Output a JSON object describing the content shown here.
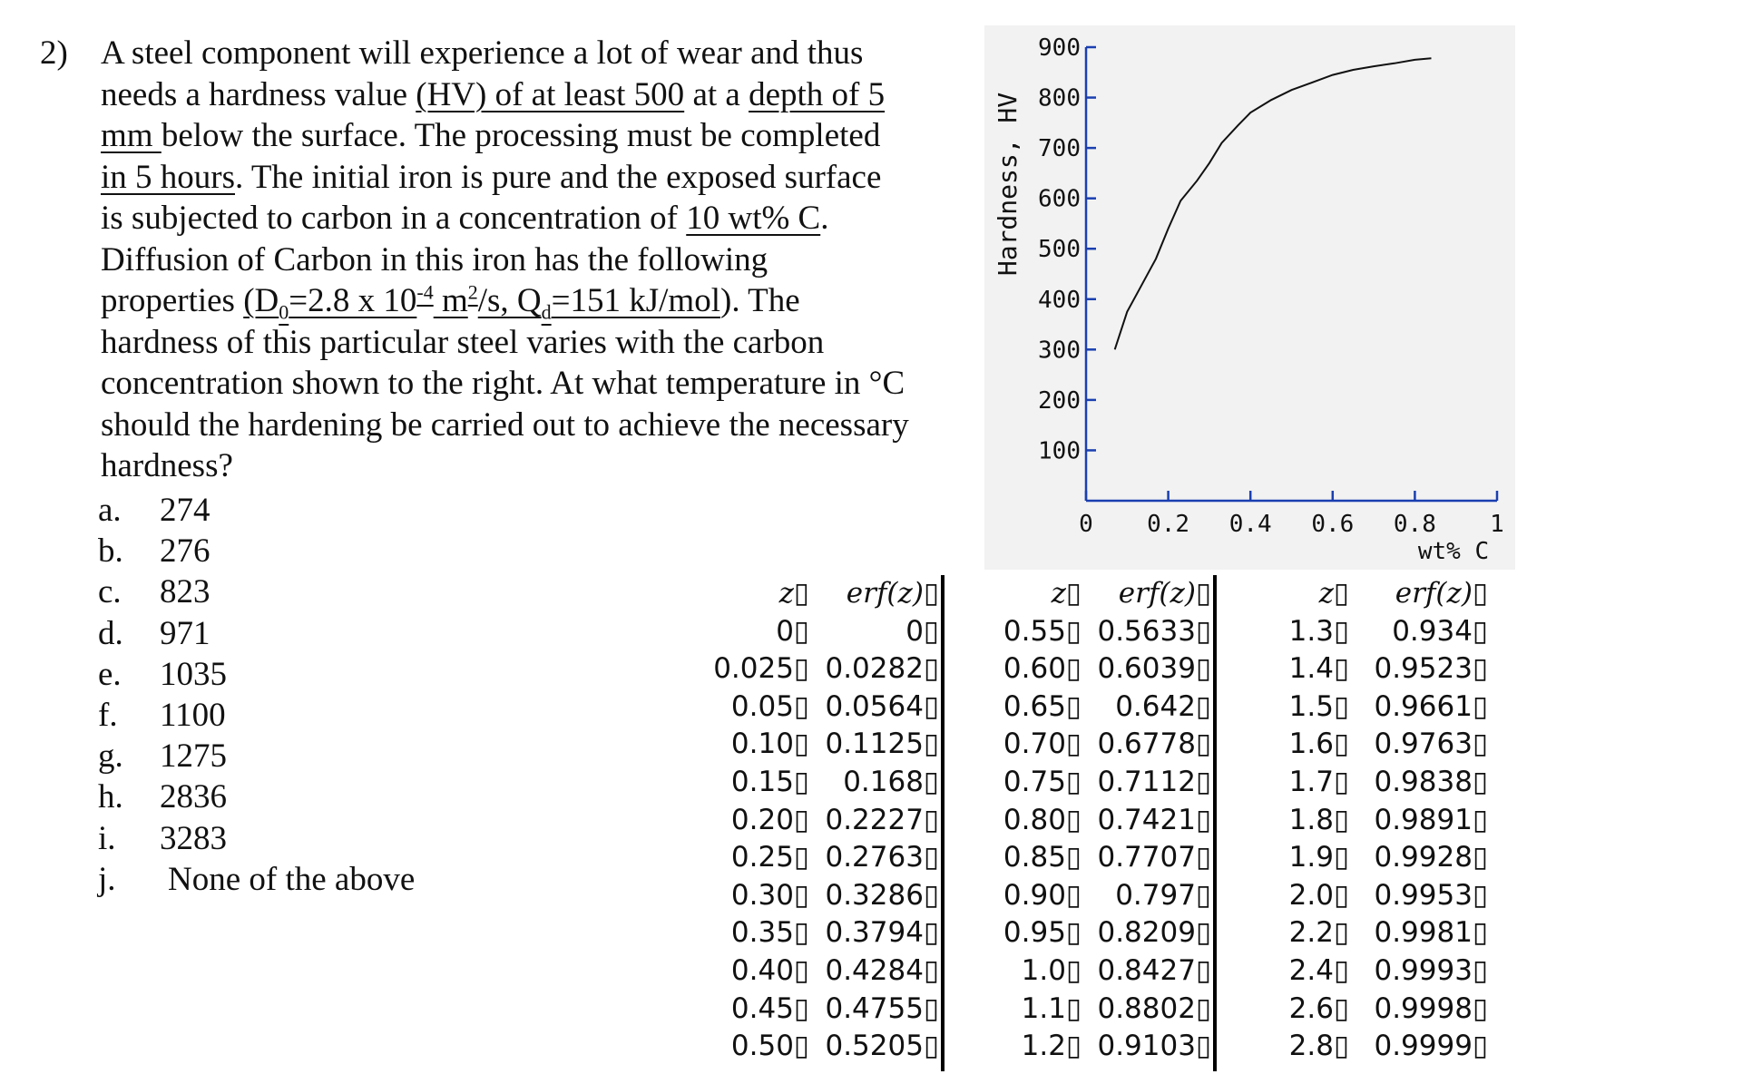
{
  "question": {
    "number": "2)",
    "lines": [
      [
        {
          "t": "A steel component will experience a lot of wear and thus"
        }
      ],
      [
        {
          "t": "needs a hardness value "
        },
        {
          "t": "(HV) of at least 500",
          "u": true
        },
        {
          "t": " at a "
        },
        {
          "t": "depth of 5",
          "u": true
        }
      ],
      [
        {
          "t": "mm ",
          "u": true
        },
        {
          "t": "below the surface. The processing must be completed"
        }
      ],
      [
        {
          "t": "in 5 hours",
          "u": true
        },
        {
          "t": ". The initial iron is pure and the exposed surface"
        }
      ],
      [
        {
          "t": "is subjected to carbon in a concentration of "
        },
        {
          "t": "10 wt% C",
          "u": true
        },
        {
          "t": "."
        }
      ],
      [
        {
          "t": "Diffusion of Carbon in this iron has the following"
        }
      ],
      [
        {
          "t": "properties "
        },
        {
          "t": "(D",
          "u": true
        },
        {
          "t": "0",
          "u": true,
          "sub": true
        },
        {
          "t": "=2.8 x 10",
          "u": true
        },
        {
          "t": "-4",
          "u": true,
          "sup": true
        },
        {
          "t": " m",
          "u": true
        },
        {
          "t": "2",
          "u": true,
          "sup": true
        },
        {
          "t": "/s, Q",
          "u": true
        },
        {
          "t": "d",
          "u": true,
          "sub": true
        },
        {
          "t": "=151 kJ/mol",
          "u": true
        },
        {
          "t": "). The"
        }
      ],
      [
        {
          "t": "hardness of this particular steel varies with the carbon"
        }
      ],
      [
        {
          "t": "concentration shown to the right. At what temperature in °C"
        }
      ],
      [
        {
          "t": "should the hardening be carried out to achieve the necessary"
        }
      ],
      [
        {
          "t": "hardness?"
        }
      ]
    ]
  },
  "options": [
    {
      "letter": "a.",
      "value": "274"
    },
    {
      "letter": "b.",
      "value": "276"
    },
    {
      "letter": "c.",
      "value": "823"
    },
    {
      "letter": "d.",
      "value": "971"
    },
    {
      "letter": "e.",
      "value": "1035"
    },
    {
      "letter": "f.",
      "value": "1100"
    },
    {
      "letter": "g.",
      "value": "1275"
    },
    {
      "letter": "h.",
      "value": "2836"
    },
    {
      "letter": "i.",
      "value": "3283"
    },
    {
      "letter": "j.",
      "value": "None of the above"
    }
  ],
  "chart_data": {
    "type": "line",
    "title": "",
    "xlabel": "wt% C",
    "ylabel": "Hardness, HV",
    "xlim": [
      0,
      1
    ],
    "ylim": [
      0,
      900
    ],
    "xticks": [
      "0",
      "0.2",
      "0.4",
      "0.6",
      "0.8",
      "1"
    ],
    "xtick_values": [
      0,
      0.2,
      0.4,
      0.6,
      0.8,
      1.0
    ],
    "yticks": [
      "100",
      "200",
      "300",
      "400",
      "500",
      "600",
      "700",
      "800",
      "900"
    ],
    "ytick_values": [
      100,
      200,
      300,
      400,
      500,
      600,
      700,
      800,
      900
    ],
    "grid": false,
    "series": [
      {
        "x": [
          0.07,
          0.1,
          0.13,
          0.17,
          0.2,
          0.23,
          0.27,
          0.3,
          0.33,
          0.37,
          0.4,
          0.45,
          0.5,
          0.55,
          0.6,
          0.65,
          0.7,
          0.75,
          0.8,
          0.84
        ],
        "y": [
          300,
          375,
          420,
          480,
          540,
          595,
          635,
          670,
          710,
          745,
          770,
          795,
          815,
          830,
          845,
          855,
          862,
          868,
          875,
          878
        ]
      }
    ],
    "colors": {
      "axis": "#1a3fb0",
      "curve": "#111111",
      "background": "#f2f2f2"
    }
  },
  "erf_table": {
    "header": {
      "z": "z",
      "erf": "erf(z)",
      "glyph": "▯"
    },
    "glyph": "▯",
    "columns": [
      [
        [
          "0",
          "0"
        ],
        [
          "0.025",
          "0.0282"
        ],
        [
          "0.05",
          "0.0564"
        ],
        [
          "0.10",
          "0.1125"
        ],
        [
          "0.15",
          "0.168"
        ],
        [
          "0.20",
          "0.2227"
        ],
        [
          "0.25",
          "0.2763"
        ],
        [
          "0.30",
          "0.3286"
        ],
        [
          "0.35",
          "0.3794"
        ],
        [
          "0.40",
          "0.4284"
        ],
        [
          "0.45",
          "0.4755"
        ],
        [
          "0.50",
          "0.5205"
        ]
      ],
      [
        [
          "0.55",
          "0.5633"
        ],
        [
          "0.60",
          "0.6039"
        ],
        [
          "0.65",
          "0.642"
        ],
        [
          "0.70",
          "0.6778"
        ],
        [
          "0.75",
          "0.7112"
        ],
        [
          "0.80",
          "0.7421"
        ],
        [
          "0.85",
          "0.7707"
        ],
        [
          "0.90",
          "0.797"
        ],
        [
          "0.95",
          "0.8209"
        ],
        [
          "1.0",
          "0.8427"
        ],
        [
          "1.1",
          "0.8802"
        ],
        [
          "1.2",
          "0.9103"
        ]
      ],
      [
        [
          "1.3",
          "0.934"
        ],
        [
          "1.4",
          "0.9523"
        ],
        [
          "1.5",
          "0.9661"
        ],
        [
          "1.6",
          "0.9763"
        ],
        [
          "1.7",
          "0.9838"
        ],
        [
          "1.8",
          "0.9891"
        ],
        [
          "1.9",
          "0.9928"
        ],
        [
          "2.0",
          "0.9953"
        ],
        [
          "2.2",
          "0.9981"
        ],
        [
          "2.4",
          "0.9993"
        ],
        [
          "2.6",
          "0.9998"
        ],
        [
          "2.8",
          "0.9999"
        ]
      ]
    ]
  }
}
